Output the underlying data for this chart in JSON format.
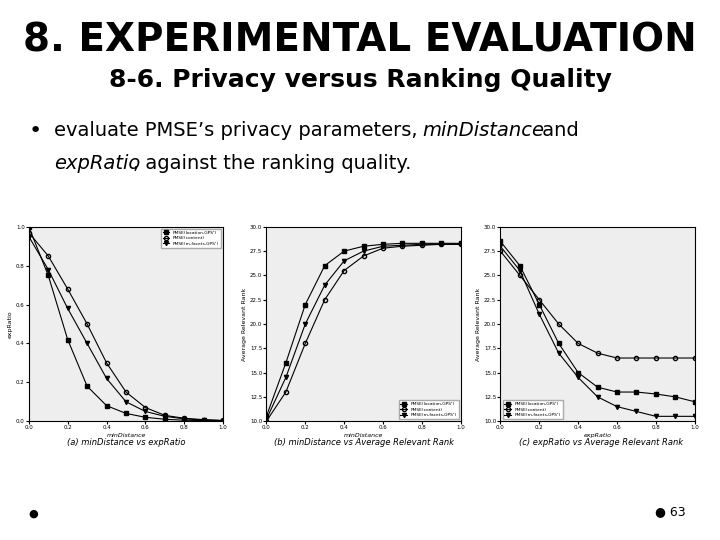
{
  "title": "8. EXPERIMENTAL EVALUATION",
  "subtitle": "8-6. Privacy versus Ranking Quality",
  "page_number": "63",
  "bg_color": "#ffffff",
  "title_color": "#000000",
  "subtitle_color": "#000000",
  "text_color": "#000000",
  "title_fontsize": 28,
  "subtitle_fontsize": 18,
  "bullet_fontsize": 14,
  "charts": [
    {
      "label_pre": "(a) ",
      "label_italic": "minDistance",
      "label_mid": " vs ",
      "label_italic2": "expRatio",
      "label_post": "",
      "ylabel": "expRatio",
      "xlabel": "minDistance",
      "legend_loc": "upper right",
      "series": [
        {
          "name": "PMSE(location,GPS¹)",
          "marker": "s",
          "fillstyle": "full",
          "x": [
            0.0,
            0.1,
            0.2,
            0.3,
            0.4,
            0.5,
            0.6,
            0.7,
            0.8,
            0.9,
            1.0
          ],
          "y": [
            1.0,
            0.75,
            0.42,
            0.18,
            0.08,
            0.04,
            0.02,
            0.01,
            0.005,
            0.003,
            0.002
          ]
        },
        {
          "name": "PMSE(content)",
          "marker": "o",
          "fillstyle": "none",
          "x": [
            0.0,
            0.1,
            0.2,
            0.3,
            0.4,
            0.5,
            0.6,
            0.7,
            0.8,
            0.9,
            1.0
          ],
          "y": [
            0.97,
            0.85,
            0.68,
            0.5,
            0.3,
            0.15,
            0.07,
            0.03,
            0.015,
            0.008,
            0.004
          ]
        },
        {
          "name": "PMSE(m-facets,GPS¹)",
          "marker": "v",
          "fillstyle": "full",
          "x": [
            0.0,
            0.1,
            0.2,
            0.3,
            0.4,
            0.5,
            0.6,
            0.7,
            0.8,
            0.9,
            1.0
          ],
          "y": [
            0.95,
            0.78,
            0.58,
            0.4,
            0.22,
            0.1,
            0.05,
            0.025,
            0.012,
            0.006,
            0.003
          ]
        }
      ],
      "ylim": [
        0.0,
        1.0
      ],
      "xlim": [
        0.0,
        1.0
      ]
    },
    {
      "label_pre": "(b) ",
      "label_italic": "minDistance",
      "label_mid": " vs Average Relevant Rank",
      "label_italic2": "",
      "label_post": "",
      "ylabel": "Average Relevant Rank",
      "xlabel": "minDistance",
      "legend_loc": "lower right",
      "series": [
        {
          "name": "PMSE(location,GPS¹)",
          "marker": "s",
          "fillstyle": "full",
          "x": [
            0.0,
            0.1,
            0.2,
            0.3,
            0.4,
            0.5,
            0.6,
            0.7,
            0.8,
            0.9,
            1.0
          ],
          "y": [
            10.5,
            16.0,
            22.0,
            26.0,
            27.5,
            28.0,
            28.2,
            28.3,
            28.3,
            28.3,
            28.3
          ]
        },
        {
          "name": "PMSE(content)",
          "marker": "o",
          "fillstyle": "none",
          "x": [
            0.0,
            0.1,
            0.2,
            0.3,
            0.4,
            0.5,
            0.6,
            0.7,
            0.8,
            0.9,
            1.0
          ],
          "y": [
            10.0,
            13.0,
            18.0,
            22.5,
            25.5,
            27.0,
            27.8,
            28.0,
            28.1,
            28.2,
            28.2
          ]
        },
        {
          "name": "PMSE(m-facets,GPS¹)",
          "marker": "v",
          "fillstyle": "full",
          "x": [
            0.0,
            0.1,
            0.2,
            0.3,
            0.4,
            0.5,
            0.6,
            0.7,
            0.8,
            0.9,
            1.0
          ],
          "y": [
            10.2,
            14.5,
            20.0,
            24.0,
            26.5,
            27.5,
            28.0,
            28.1,
            28.2,
            28.2,
            28.2
          ]
        }
      ],
      "ylim": [
        10,
        30
      ],
      "xlim": [
        0.0,
        1.0
      ]
    },
    {
      "label_pre": "(c) ",
      "label_italic": "expRatio",
      "label_mid": " vs Average Relevant Rank",
      "label_italic2": "",
      "label_post": "",
      "ylabel": "Average Relevant Rank",
      "xlabel": "expRatio",
      "legend_loc": "lower left",
      "series": [
        {
          "name": "PMSE(location,GPS¹)",
          "marker": "s",
          "fillstyle": "full",
          "x": [
            0.0,
            0.1,
            0.2,
            0.3,
            0.4,
            0.5,
            0.6,
            0.7,
            0.8,
            0.9,
            1.0
          ],
          "y": [
            28.5,
            26.0,
            22.0,
            18.0,
            15.0,
            13.5,
            13.0,
            13.0,
            12.8,
            12.5,
            12.0
          ]
        },
        {
          "name": "PMSE(content)",
          "marker": "o",
          "fillstyle": "none",
          "x": [
            0.0,
            0.1,
            0.2,
            0.3,
            0.4,
            0.5,
            0.6,
            0.7,
            0.8,
            0.9,
            1.0
          ],
          "y": [
            27.5,
            25.0,
            22.5,
            20.0,
            18.0,
            17.0,
            16.5,
            16.5,
            16.5,
            16.5,
            16.5
          ]
        },
        {
          "name": "PMSE(m-facets,GPS¹)",
          "marker": "v",
          "fillstyle": "full",
          "x": [
            0.0,
            0.1,
            0.2,
            0.3,
            0.4,
            0.5,
            0.6,
            0.7,
            0.8,
            0.9,
            1.0
          ],
          "y": [
            28.0,
            25.5,
            21.0,
            17.0,
            14.5,
            12.5,
            11.5,
            11.0,
            10.5,
            10.5,
            10.5
          ]
        }
      ],
      "ylim": [
        10,
        30
      ],
      "xlim": [
        0.0,
        1.0
      ]
    }
  ]
}
